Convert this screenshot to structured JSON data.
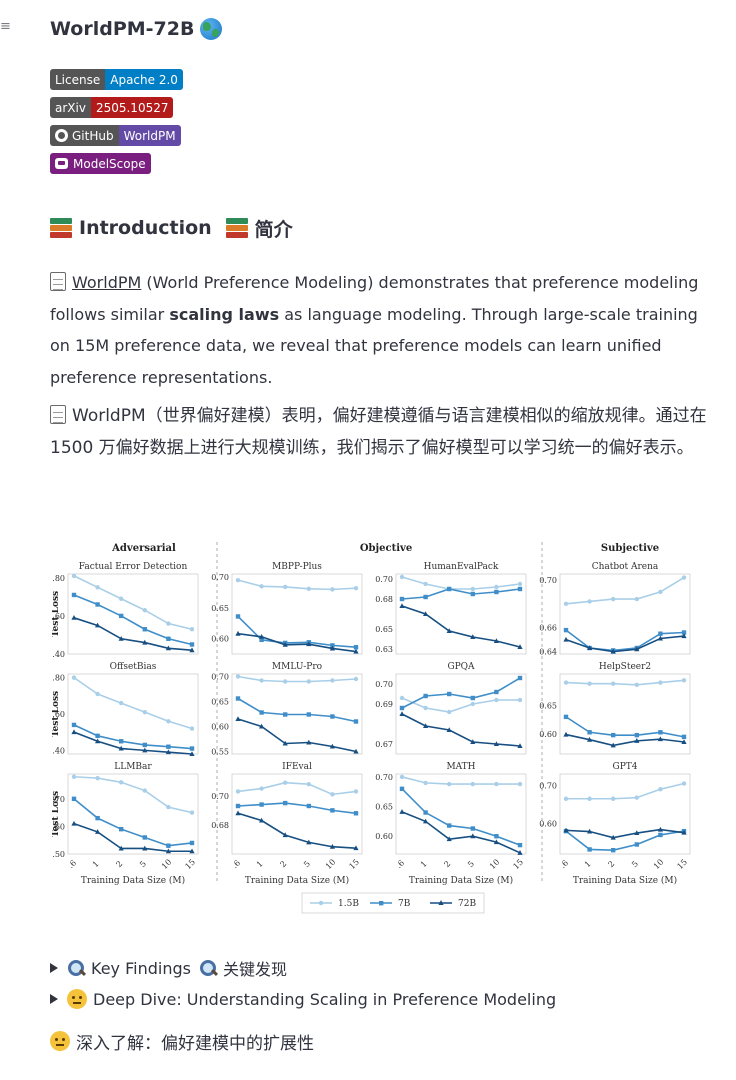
{
  "app": {
    "title": "WorldPM-72B",
    "menu_icon": "hamburger-icon",
    "title_icon": "globe-icon"
  },
  "badges": [
    {
      "left": "License",
      "right": "Apache 2.0",
      "right_color": "#007ec6"
    },
    {
      "left": "arXiv",
      "right": "2505.10527",
      "right_color": "#b31b1b"
    },
    {
      "left": "GitHub",
      "right": "WorldPM",
      "right_color": "#624aa6",
      "icon": "github-icon"
    },
    {
      "label": "ModelScope",
      "color": "#7a1f7f",
      "icon": "modelscope-icon"
    }
  ],
  "intro": {
    "heading_en": "Introduction",
    "heading_zh": "简介",
    "heading_icon": "books-icon",
    "p1_link": "WorldPM",
    "p1_a": " (World Preference Modeling) demonstrates that preference modeling follows similar ",
    "p1_bold": "scaling laws",
    "p1_b": " as language modeling. Through large-scale training on 15M preference data, we reveal that preference models can learn unified preference representations.",
    "p2": "WorldPM（世界偏好建模）表明，偏好建模遵循与语言建模相似的缩放规律。通过在 1500 万偏好数据上进行大规模训练，我们揭示了偏好模型可以学习统一的偏好表示。"
  },
  "chart_data": {
    "type": "line",
    "x": [
      ".6",
      "1",
      "2",
      "5",
      "10",
      "15"
    ],
    "xlabel": "Training Data Size (M)",
    "ylabel": "Test Loss",
    "groups": [
      "Adversarial",
      "Objective",
      "Subjective"
    ],
    "legend": [
      "1.5B",
      "7B",
      "72B"
    ],
    "series_colors": [
      "#a9cfe8",
      "#3f8ec9",
      "#174f82"
    ],
    "panels": [
      {
        "title": "Factual Error Detection",
        "ylim": [
          0.4,
          0.82
        ],
        "yticks": [
          "0.80",
          "0.60",
          "0.40"
        ],
        "series": [
          [
            0.81,
            0.75,
            0.69,
            0.63,
            0.56,
            0.53
          ],
          [
            0.71,
            0.66,
            0.6,
            0.53,
            0.48,
            0.45
          ],
          [
            0.59,
            0.55,
            0.48,
            0.46,
            0.43,
            0.42
          ]
        ]
      },
      {
        "title": "MBPP-Plus",
        "ylim": [
          0.575,
          0.705
        ],
        "yticks": [
          "0.70",
          "0.65",
          "0.60"
        ],
        "series": [
          [
            0.695,
            0.685,
            0.684,
            0.681,
            0.68,
            0.682
          ],
          [
            0.636,
            0.598,
            0.593,
            0.594,
            0.589,
            0.586
          ],
          [
            0.608,
            0.603,
            0.59,
            0.591,
            0.584,
            0.579
          ]
        ]
      },
      {
        "title": "HumanEvalPack",
        "ylim": [
          0.625,
          0.705
        ],
        "yticks": [
          "0.70",
          "0.68",
          "0.65",
          "0.63"
        ],
        "series": [
          [
            0.702,
            0.695,
            0.69,
            0.69,
            0.692,
            0.695
          ],
          [
            0.68,
            0.682,
            0.69,
            0.685,
            0.687,
            0.69
          ],
          [
            0.673,
            0.665,
            0.648,
            0.642,
            0.638,
            0.632
          ]
        ]
      },
      {
        "title": "Chatbot Arena",
        "ylim": [
          0.638,
          0.705
        ],
        "yticks": [
          "0.70",
          "0.66",
          "0.64"
        ],
        "series": [
          [
            0.68,
            0.682,
            0.684,
            0.684,
            0.69,
            0.702
          ],
          [
            0.658,
            0.643,
            0.641,
            0.643,
            0.655,
            0.656
          ],
          [
            0.65,
            0.643,
            0.64,
            0.642,
            0.651,
            0.653
          ]
        ]
      },
      {
        "title": "OffsetBias",
        "ylim": [
          0.38,
          0.82
        ],
        "yticks": [
          "0.80",
          "0.60",
          "0.40"
        ],
        "series": [
          [
            0.8,
            0.71,
            0.66,
            0.61,
            0.56,
            0.52
          ],
          [
            0.54,
            0.48,
            0.45,
            0.43,
            0.42,
            0.41
          ],
          [
            0.5,
            0.45,
            0.41,
            0.4,
            0.39,
            0.38
          ]
        ]
      },
      {
        "title": "MMLU-Pro",
        "ylim": [
          0.545,
          0.705
        ],
        "yticks": [
          "0.70",
          "0.65",
          "0.60",
          "0.55"
        ],
        "series": [
          [
            0.7,
            0.692,
            0.69,
            0.69,
            0.692,
            0.695
          ],
          [
            0.656,
            0.628,
            0.624,
            0.624,
            0.62,
            0.61
          ],
          [
            0.615,
            0.6,
            0.566,
            0.568,
            0.56,
            0.55
          ]
        ]
      },
      {
        "title": "GPQA",
        "ylim": [
          0.665,
          0.705
        ],
        "yticks": [
          "0.70",
          "0.69",
          "0.67"
        ],
        "series": [
          [
            0.693,
            0.688,
            0.686,
            0.69,
            0.692,
            0.692
          ],
          [
            0.688,
            0.694,
            0.695,
            0.693,
            0.696,
            0.703
          ],
          [
            0.685,
            0.679,
            0.677,
            0.671,
            0.67,
            0.669
          ]
        ]
      },
      {
        "title": "HelpSteer2",
        "ylim": [
          0.565,
          0.705
        ],
        "yticks": [
          "0.65",
          "0.60"
        ],
        "series": [
          [
            0.69,
            0.688,
            0.688,
            0.686,
            0.69,
            0.694
          ],
          [
            0.63,
            0.603,
            0.598,
            0.598,
            0.603,
            0.595
          ],
          [
            0.599,
            0.59,
            0.58,
            0.588,
            0.591,
            0.586
          ]
        ]
      },
      {
        "title": "LLMBar",
        "ylim": [
          0.5,
          0.79
        ],
        "yticks": [
          "0.70",
          "0.60",
          "0.50"
        ],
        "series": [
          [
            0.78,
            0.775,
            0.76,
            0.73,
            0.67,
            0.65
          ],
          [
            0.7,
            0.63,
            0.59,
            0.56,
            0.53,
            0.54
          ],
          [
            0.61,
            0.58,
            0.52,
            0.52,
            0.51,
            0.51
          ]
        ]
      },
      {
        "title": "IFEval",
        "ylim": [
          0.66,
          0.715
        ],
        "yticks": [
          "0.70",
          "0.68"
        ],
        "series": [
          [
            0.703,
            0.705,
            0.709,
            0.708,
            0.701,
            0.703
          ],
          [
            0.693,
            0.694,
            0.695,
            0.693,
            0.69,
            0.688
          ],
          [
            0.688,
            0.683,
            0.673,
            0.668,
            0.665,
            0.664
          ]
        ]
      },
      {
        "title": "MATH",
        "ylim": [
          0.57,
          0.705
        ],
        "yticks": [
          "0.70",
          "0.65",
          "0.60"
        ],
        "series": [
          [
            0.7,
            0.69,
            0.688,
            0.688,
            0.688,
            0.688
          ],
          [
            0.68,
            0.64,
            0.618,
            0.613,
            0.6,
            0.585
          ],
          [
            0.641,
            0.625,
            0.595,
            0.6,
            0.59,
            0.572
          ]
        ]
      },
      {
        "title": "GPT4",
        "ylim": [
          0.52,
          0.73
        ],
        "yticks": [
          "0.70",
          "0.60"
        ],
        "series": [
          [
            0.665,
            0.665,
            0.665,
            0.668,
            0.69,
            0.705
          ],
          [
            0.58,
            0.532,
            0.53,
            0.545,
            0.57,
            0.58
          ],
          [
            0.582,
            0.579,
            0.563,
            0.575,
            0.584,
            0.576
          ]
        ]
      }
    ]
  },
  "findings": {
    "key_en": "Key Findings",
    "key_zh": "关键发现",
    "key_icon": "magnifier-icon",
    "deep_label": "Deep Dive: Understanding Scaling in Preference Modeling",
    "deep_icon": "thinking-face-icon",
    "deep_zh_heading": "深入了解：偏好建模中的扩展性"
  }
}
